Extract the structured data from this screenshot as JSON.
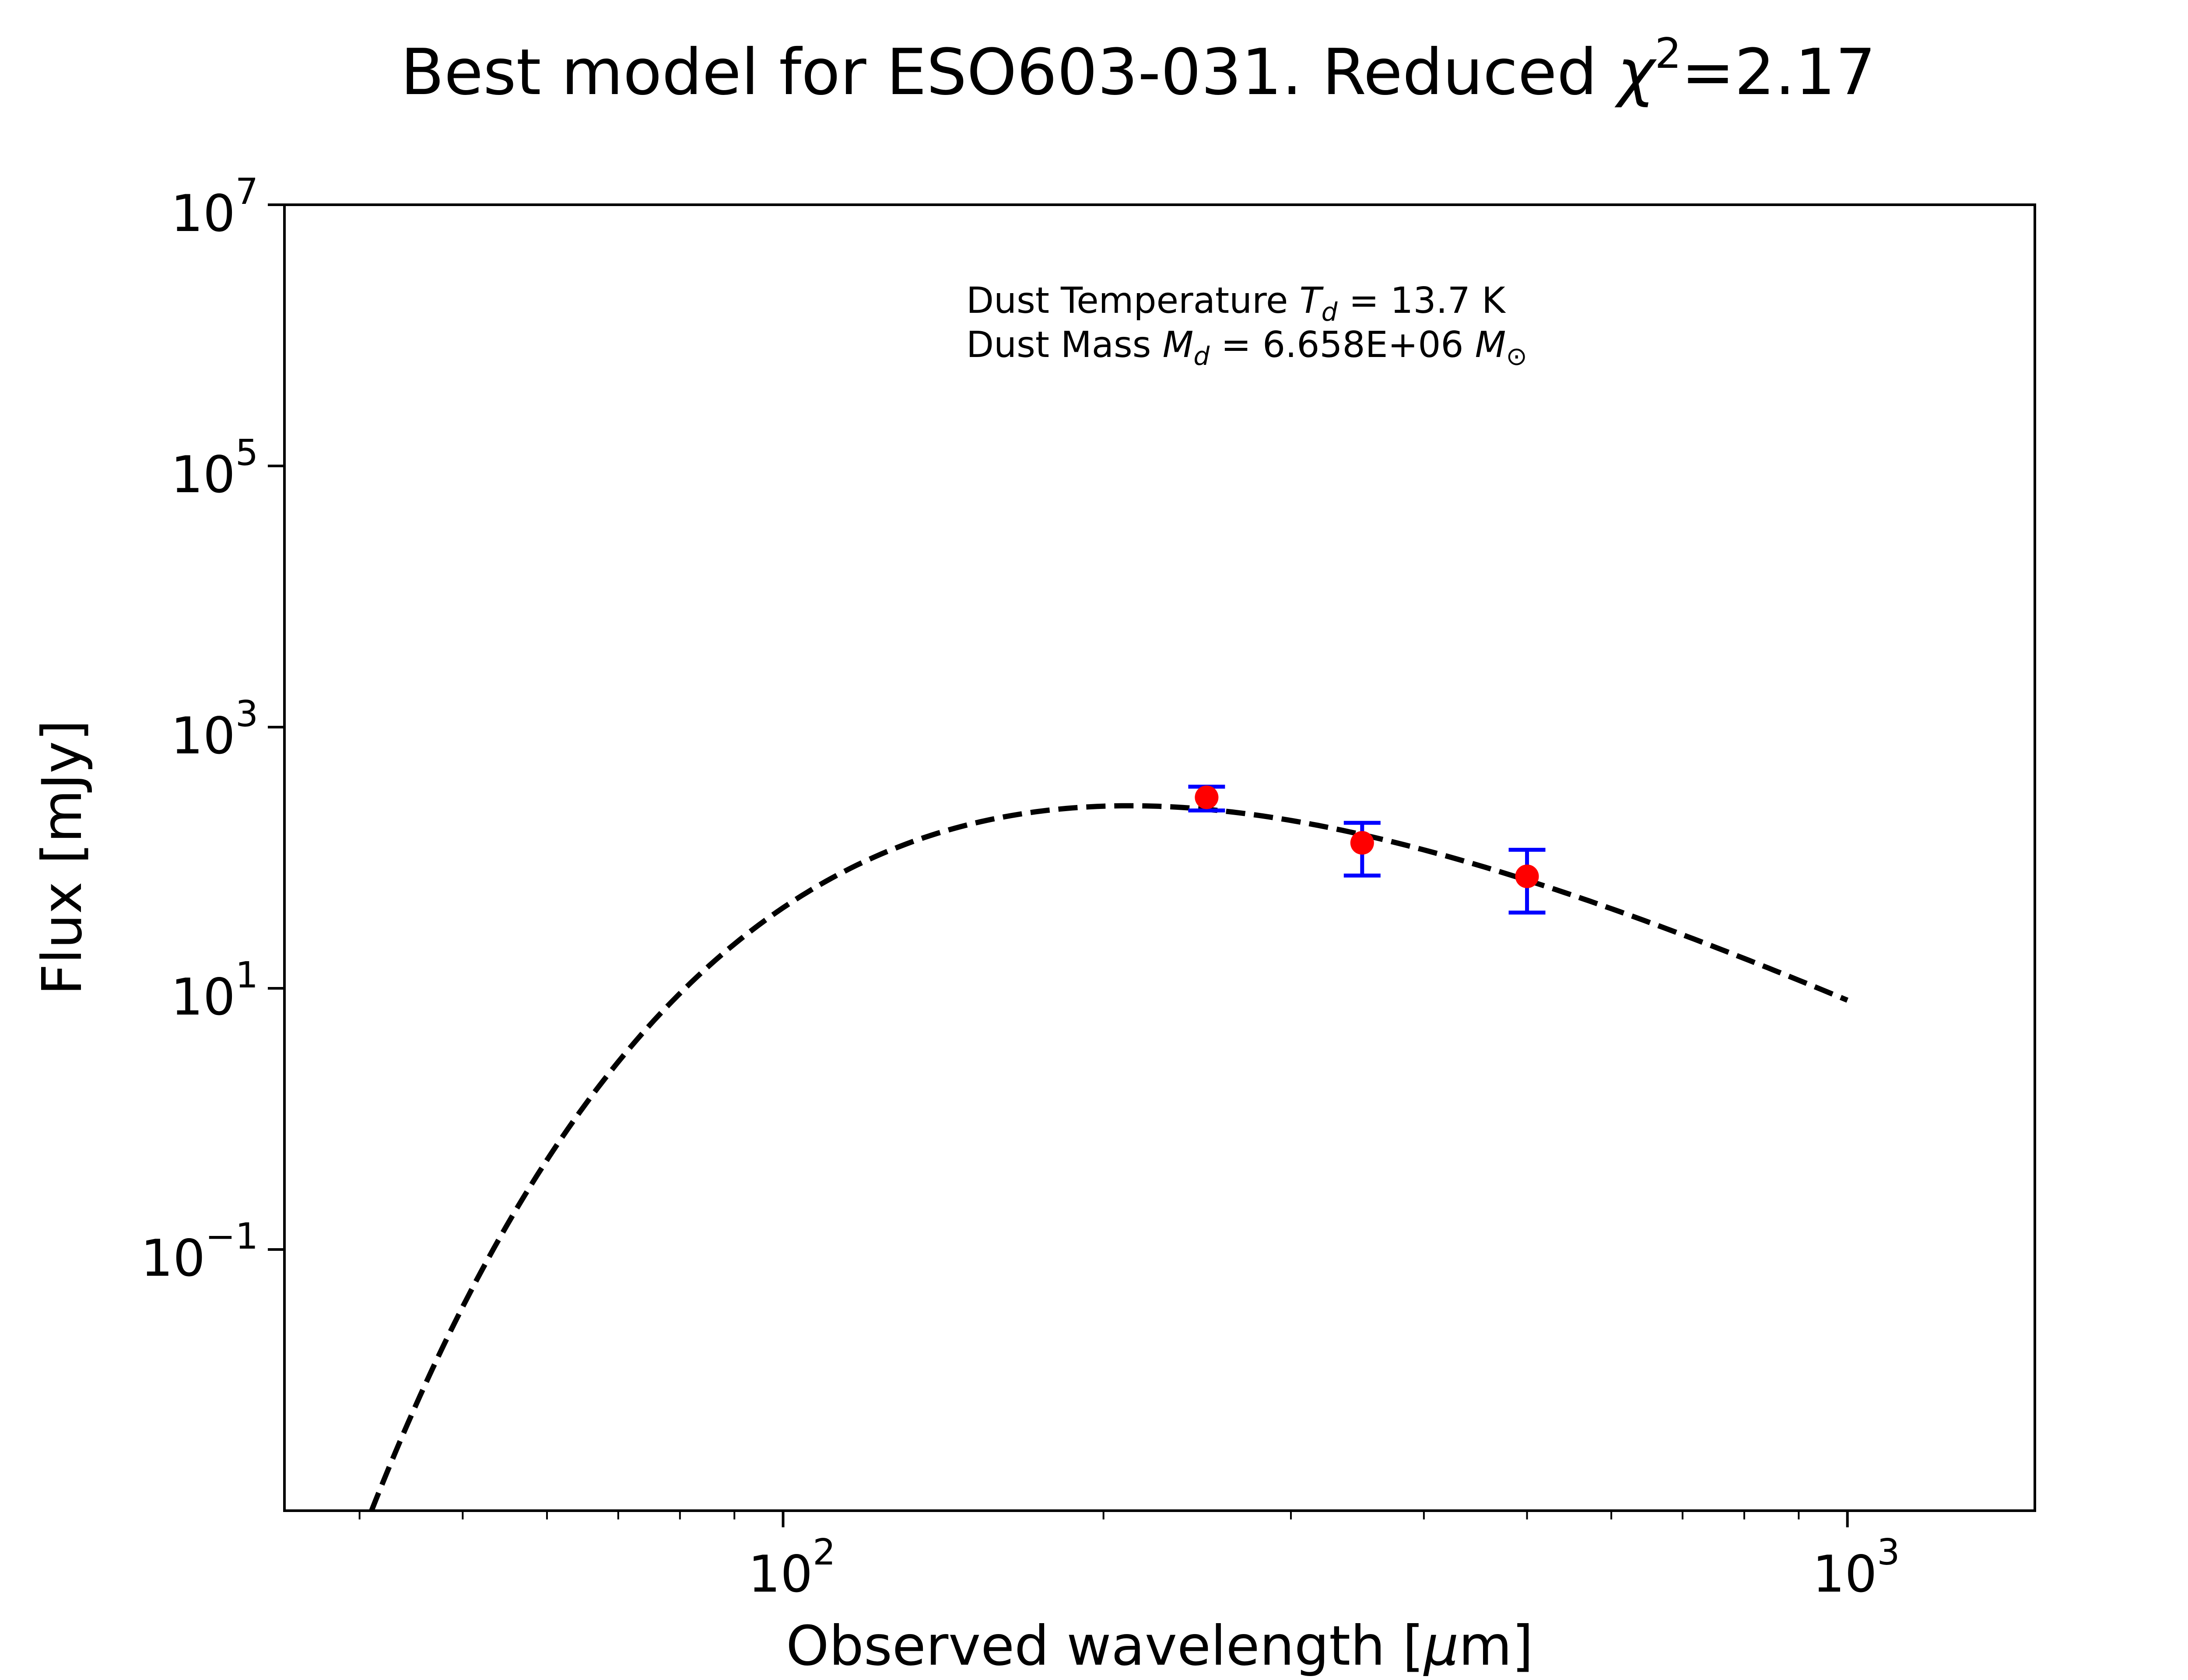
{
  "chart_data": {
    "type": "scatter",
    "title": "Best model for ESO603-031. Reduced χ²=2.17",
    "title_parts": {
      "main": "Best model for ESO603-031. Reduced ",
      "chi": "χ",
      "exp": "2",
      "value": "=2.17"
    },
    "xlabel": "Observed wavelength [μm]",
    "xlabel_parts": {
      "pre": "Observed wavelength [",
      "mu": "μ",
      "post": "m]"
    },
    "ylabel": "Flux [mJy]",
    "x_scale": "log",
    "y_scale": "log",
    "xlim": [
      34,
      1500
    ],
    "ylim": [
      0.001,
      10000000
    ],
    "x_ticks": [
      {
        "value": 100,
        "base": "10",
        "exp": "2"
      },
      {
        "value": 1000,
        "base": "10",
        "exp": "3"
      }
    ],
    "y_ticks": [
      {
        "value": 0.1,
        "base": "10",
        "exp": "−1"
      },
      {
        "value": 10,
        "base": "10",
        "exp": "1"
      },
      {
        "value": 1000,
        "base": "10",
        "exp": "3"
      },
      {
        "value": 100000,
        "base": "10",
        "exp": "5"
      },
      {
        "value": 10000000,
        "base": "10",
        "exp": "7"
      }
    ],
    "grid": false,
    "observed_points": {
      "color": "#ff0000",
      "error_color": "#0000ff",
      "x": [
        250,
        350,
        500
      ],
      "y": [
        290,
        130,
        72
      ],
      "y_low": [
        230,
        73,
        38
      ],
      "y_high": [
        350,
        185,
        115
      ]
    },
    "model_curve": {
      "style": "dashed",
      "color": "#000000",
      "temperature_K": 13.7,
      "x_range": [
        41,
        1000
      ],
      "peak_x": 213,
      "peak_y": 250
    },
    "annotation": {
      "line1": {
        "pre": "Dust Temperature ",
        "sym": "T",
        "sub": "d",
        "post": " = 13.7 K"
      },
      "line2": {
        "pre": "Dust Mass ",
        "sym": "M",
        "sub": "d",
        "post": " = 6.658E+06 ",
        "unit": "M",
        "unit_sub": "⊙"
      }
    }
  }
}
